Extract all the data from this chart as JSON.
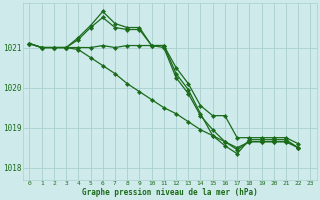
{
  "title": "Graphe pression niveau de la mer (hPa)",
  "background_color": "#ceeaea",
  "grid_color": "#aacfcf",
  "line_color": "#1a6b1a",
  "text_color": "#1a6b1a",
  "xlim": [
    -0.5,
    23.5
  ],
  "ylim": [
    1017.7,
    1022.1
  ],
  "yticks": [
    1018,
    1019,
    1020,
    1021
  ],
  "xticks": [
    0,
    1,
    2,
    3,
    4,
    5,
    6,
    7,
    8,
    9,
    10,
    11,
    12,
    13,
    14,
    15,
    16,
    17,
    18,
    19,
    20,
    21,
    22,
    23
  ],
  "series": [
    {
      "x": [
        0,
        1,
        2,
        3,
        4,
        5,
        6,
        7,
        8,
        9,
        10,
        11,
        12,
        13,
        14,
        15,
        16,
        17,
        18,
        19,
        20,
        21,
        22
      ],
      "y": [
        1021.1,
        1021.0,
        1021.0,
        1021.0,
        1021.2,
        1021.5,
        1021.75,
        1021.5,
        1021.45,
        1021.45,
        1021.05,
        1021.05,
        1020.5,
        1020.1,
        1019.55,
        1019.3,
        1019.3,
        1018.75,
        1018.75,
        1018.75,
        1018.75,
        1018.75,
        1018.6
      ]
    },
    {
      "x": [
        0,
        1,
        2,
        3,
        4,
        5,
        6,
        7,
        8,
        9,
        10,
        11,
        12,
        13,
        14,
        15,
        16,
        17,
        18,
        19,
        20,
        21,
        22
      ],
      "y": [
        1021.1,
        1021.0,
        1021.0,
        1021.0,
        1021.25,
        1021.55,
        1021.9,
        1021.6,
        1021.5,
        1021.5,
        1021.05,
        1021.05,
        1020.35,
        1019.95,
        1019.35,
        1018.8,
        1018.55,
        1018.35,
        1018.7,
        1018.7,
        1018.7,
        1018.7,
        1018.5
      ]
    },
    {
      "x": [
        0,
        1,
        2,
        3,
        4,
        5,
        6,
        7,
        8,
        9,
        10,
        11,
        12,
        13,
        14,
        15,
        16,
        17,
        18,
        19,
        20,
        21,
        22
      ],
      "y": [
        1021.1,
        1021.0,
        1021.0,
        1021.0,
        1021.0,
        1021.0,
        1021.05,
        1021.0,
        1021.05,
        1021.05,
        1021.05,
        1021.0,
        1020.25,
        1019.85,
        1019.3,
        1018.95,
        1018.65,
        1018.45,
        1018.65,
        1018.65,
        1018.65,
        1018.65,
        1018.5
      ]
    },
    {
      "x": [
        0,
        1,
        2,
        3,
        4,
        5,
        6,
        7,
        8,
        9,
        10,
        11,
        12,
        13,
        14,
        15,
        16,
        17,
        18,
        19,
        20,
        21,
        22
      ],
      "y": [
        1021.1,
        1021.0,
        1021.0,
        1021.0,
        1020.95,
        1020.75,
        1020.55,
        1020.35,
        1020.1,
        1019.9,
        1019.7,
        1019.5,
        1019.35,
        1019.15,
        1018.95,
        1018.8,
        1018.65,
        1018.5,
        1018.65,
        1018.65,
        1018.65,
        1018.65,
        1018.5
      ]
    }
  ],
  "marker": "D",
  "markersize": 2.2,
  "linewidth": 0.9
}
